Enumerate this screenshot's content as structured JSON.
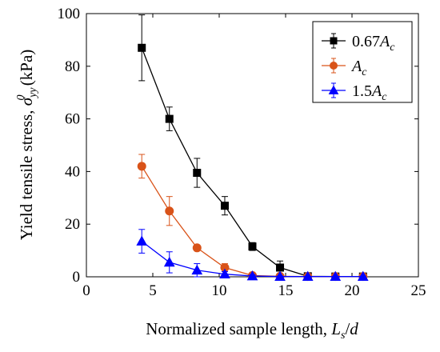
{
  "chart_data": {
    "type": "line",
    "xlabel": "Normalized sample length, L_s/d",
    "ylabel": "Yield tensile stress, σ_yy^0 (kPa)",
    "xlim": [
      0,
      25
    ],
    "ylim": [
      0,
      100
    ],
    "x_ticks": [
      0,
      5,
      10,
      15,
      20,
      25
    ],
    "y_ticks": [
      0,
      20,
      40,
      60,
      80,
      100
    ],
    "grid": false,
    "legend_position": "top-right",
    "x_label_parts": {
      "main": "Normalized sample length, ",
      "var": "L",
      "sub": "s",
      "tail": "/",
      "var2": "d"
    },
    "y_label_parts": {
      "main": "Yield tensile stress, ",
      "sigma": "σ",
      "sub": "yy",
      "sup": "0",
      "unit": " (kPa)"
    },
    "series": [
      {
        "name": "0.67A_c",
        "legend_parts": {
          "num": "0.67",
          "var": "A",
          "sub": "c"
        },
        "color": "#000000",
        "marker": "square",
        "x": [
          4.17,
          6.25,
          8.33,
          10.42,
          12.5,
          14.58,
          16.67,
          18.75,
          20.83
        ],
        "y": [
          87,
          60,
          39.5,
          27,
          11.5,
          3.5,
          0.2,
          0.1,
          0.1
        ],
        "err": [
          12.5,
          4.5,
          5.5,
          3.5,
          1.5,
          2.5,
          0.3,
          0.2,
          0.2
        ]
      },
      {
        "name": "A_c",
        "legend_parts": {
          "num": "",
          "var": "A",
          "sub": "c"
        },
        "color": "#d95319",
        "marker": "circle",
        "x": [
          4.17,
          6.25,
          8.33,
          10.42,
          12.5,
          14.58,
          16.67,
          18.75,
          20.83
        ],
        "y": [
          42,
          25,
          11,
          3.5,
          0.5,
          0.2,
          0.1,
          0.1,
          0.1
        ],
        "err": [
          4.5,
          5.5,
          1,
          1.5,
          0.4,
          0.2,
          0.1,
          0.1,
          0.1
        ]
      },
      {
        "name": "1.5A_c",
        "legend_parts": {
          "num": "1.5",
          "var": "A",
          "sub": "c"
        },
        "color": "#0000ff",
        "marker": "triangle",
        "x": [
          4.17,
          6.25,
          8.33,
          10.42,
          12.5,
          14.58,
          16.67,
          18.75,
          20.83
        ],
        "y": [
          13.5,
          5.5,
          2.5,
          1,
          0.3,
          0.1,
          0.1,
          0.1,
          0.1
        ],
        "err": [
          4.5,
          4,
          2.5,
          1,
          0.5,
          0.2,
          0.1,
          0.1,
          0.1
        ]
      }
    ]
  }
}
